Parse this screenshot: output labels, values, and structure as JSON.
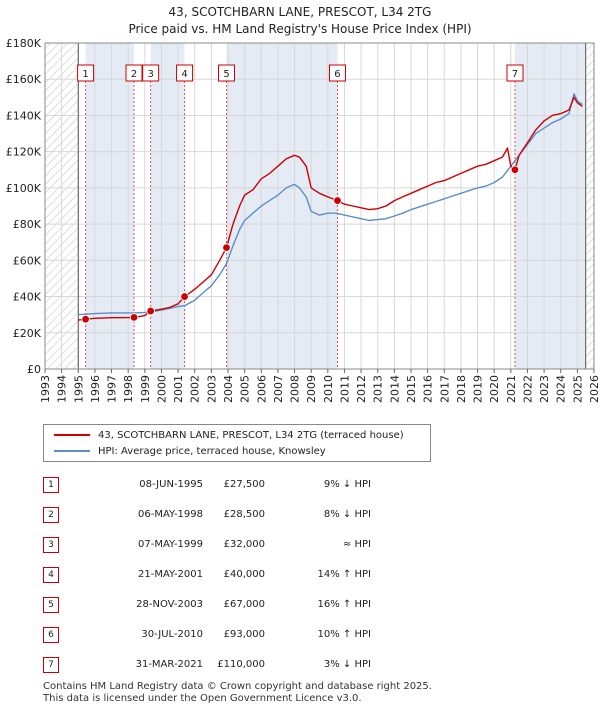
{
  "title_line1": "43, SCOTCHBARN LANE, PRESCOT, L34 2TG",
  "title_line2": "Price paid vs. HM Land Registry's House Price Index (HPI)",
  "chart_data": {
    "type": "line",
    "title": "43, SCOTCHBARN LANE, PRESCOT, L34 2TG — Price paid vs. HM Land Registry's House Price Index (HPI)",
    "x_range": [
      1993,
      2026
    ],
    "ylim": [
      0,
      180000
    ],
    "y_ticks": [
      0,
      20000,
      40000,
      60000,
      80000,
      100000,
      120000,
      140000,
      160000,
      180000
    ],
    "y_tick_labels": [
      "£0",
      "£20K",
      "£40K",
      "£60K",
      "£80K",
      "£100K",
      "£120K",
      "£140K",
      "£160K",
      "£180K"
    ],
    "x_ticks": [
      1993,
      1994,
      1995,
      1996,
      1997,
      1998,
      1999,
      2000,
      2001,
      2002,
      2003,
      2004,
      2005,
      2006,
      2007,
      2008,
      2009,
      2010,
      2011,
      2012,
      2013,
      2014,
      2015,
      2016,
      2017,
      2018,
      2019,
      2020,
      2021,
      2022,
      2023,
      2024,
      2025,
      2026
    ],
    "x_tick_labels": [
      "1993",
      "1994",
      "1995",
      "1996",
      "1997",
      "1998",
      "1999",
      "2000",
      "2001",
      "2002",
      "2003",
      "2004",
      "2005",
      "2006",
      "2007",
      "2008",
      "2009",
      "2010",
      "2011",
      "2012",
      "2013",
      "2014",
      "2015",
      "2016",
      "2017",
      "2018",
      "2019",
      "2020",
      "2021",
      "2022",
      "2023",
      "2024",
      "2025",
      "2026"
    ],
    "data_start": 1995.0,
    "data_end": 2025.5,
    "grid": true,
    "legend_position": "bottom",
    "series": [
      {
        "name": "43, SCOTCHBARN LANE, PRESCOT, L34 2TG (terraced house)",
        "color": "#cc0000",
        "x": [
          1995.0,
          1995.44,
          1996.0,
          1997.0,
          1998.0,
          1998.35,
          1999.0,
          1999.35,
          2000.0,
          2000.5,
          2001.0,
          2001.39,
          2002.0,
          2002.5,
          2003.0,
          2003.5,
          2003.91,
          2004.3,
          2004.7,
          2005.0,
          2005.5,
          2006.0,
          2006.5,
          2007.0,
          2007.5,
          2008.0,
          2008.3,
          2008.7,
          2009.0,
          2009.5,
          2010.0,
          2010.58,
          2011.0,
          2011.5,
          2012.0,
          2012.5,
          2013.0,
          2013.5,
          2014.0,
          2014.5,
          2015.0,
          2015.5,
          2016.0,
          2016.5,
          2017.0,
          2017.5,
          2018.0,
          2018.5,
          2019.0,
          2019.5,
          2020.0,
          2020.5,
          2020.8,
          2021.0,
          2021.25,
          2021.5,
          2022.0,
          2022.5,
          2023.0,
          2023.5,
          2024.0,
          2024.5,
          2024.8,
          2025.0,
          2025.3
        ],
        "y": [
          27000,
          27500,
          28000,
          28300,
          28400,
          28500,
          29500,
          32000,
          33000,
          34000,
          36000,
          40000,
          44000,
          48000,
          52000,
          60000,
          67000,
          80000,
          90000,
          96000,
          99000,
          105000,
          108000,
          112000,
          116000,
          118000,
          117000,
          112000,
          100000,
          97000,
          95000,
          93000,
          91000,
          90000,
          89000,
          88000,
          88500,
          90000,
          93000,
          95000,
          97000,
          99000,
          101000,
          103000,
          104000,
          106000,
          108000,
          110000,
          112000,
          113000,
          115000,
          117000,
          122000,
          112000,
          110000,
          118000,
          125000,
          132000,
          137000,
          140000,
          141000,
          143000,
          150000,
          147000,
          145000
        ]
      },
      {
        "name": "HPI: Average price, terraced house, Knowsley",
        "color": "#5b8fc9",
        "x": [
          1995.0,
          1995.5,
          1996.0,
          1997.0,
          1998.0,
          1998.35,
          1999.0,
          1999.35,
          2000.0,
          2000.5,
          2001.0,
          2001.4,
          2002.0,
          2002.5,
          2003.0,
          2003.5,
          2003.9,
          2004.3,
          2004.7,
          2005.0,
          2005.5,
          2006.0,
          2006.5,
          2007.0,
          2007.5,
          2008.0,
          2008.3,
          2008.7,
          2009.0,
          2009.5,
          2010.0,
          2010.5,
          2011.0,
          2011.5,
          2012.0,
          2012.5,
          2013.0,
          2013.5,
          2014.0,
          2014.5,
          2015.0,
          2015.5,
          2016.0,
          2016.5,
          2017.0,
          2017.5,
          2018.0,
          2018.5,
          2019.0,
          2019.5,
          2020.0,
          2020.5,
          2021.0,
          2021.5,
          2022.0,
          2022.5,
          2023.0,
          2023.5,
          2024.0,
          2024.5,
          2024.8,
          2025.0,
          2025.3
        ],
        "y": [
          30000,
          30300,
          30600,
          31000,
          31000,
          31000,
          31200,
          31500,
          32500,
          33500,
          34500,
          35000,
          38000,
          42000,
          46000,
          52000,
          58000,
          68000,
          77000,
          82000,
          86000,
          90000,
          93000,
          96000,
          100000,
          102000,
          100000,
          95000,
          87000,
          85000,
          86000,
          86000,
          85000,
          84000,
          83000,
          82000,
          82500,
          83000,
          84500,
          86000,
          88000,
          89500,
          91000,
          92500,
          94000,
          95500,
          97000,
          98500,
          100000,
          101000,
          103000,
          106000,
          112000,
          118000,
          124000,
          130000,
          133000,
          136000,
          138000,
          141000,
          152000,
          148000,
          146000
        ]
      }
    ],
    "sales": [
      {
        "label": "1",
        "x": 1995.44,
        "y": 27500
      },
      {
        "label": "2",
        "x": 1998.35,
        "y": 28500
      },
      {
        "label": "3",
        "x": 1999.35,
        "y": 32000
      },
      {
        "label": "4",
        "x": 2001.39,
        "y": 40000
      },
      {
        "label": "5",
        "x": 2003.91,
        "y": 67000
      },
      {
        "label": "6",
        "x": 2010.58,
        "y": 93000
      },
      {
        "label": "7",
        "x": 2021.25,
        "y": 110000
      }
    ]
  },
  "legend": {
    "property": "43, SCOTCHBARN LANE, PRESCOT, L34 2TG (terraced house)",
    "hpi": "HPI: Average price, terraced house, Knowsley"
  },
  "transactions": [
    {
      "num": "1",
      "date": "08-JUN-1995",
      "price": "£27,500",
      "hpi": "9% ↓ HPI"
    },
    {
      "num": "2",
      "date": "06-MAY-1998",
      "price": "£28,500",
      "hpi": "8% ↓ HPI"
    },
    {
      "num": "3",
      "date": "07-MAY-1999",
      "price": "£32,000",
      "hpi": "≈ HPI"
    },
    {
      "num": "4",
      "date": "21-MAY-2001",
      "price": "£40,000",
      "hpi": "14% ↑ HPI"
    },
    {
      "num": "5",
      "date": "28-NOV-2003",
      "price": "£67,000",
      "hpi": "16% ↑ HPI"
    },
    {
      "num": "6",
      "date": "30-JUL-2010",
      "price": "£93,000",
      "hpi": "10% ↑ HPI"
    },
    {
      "num": "7",
      "date": "31-MAR-2021",
      "price": "£110,000",
      "hpi": "3% ↓ HPI"
    }
  ],
  "footer": {
    "line1": "Contains HM Land Registry data © Crown copyright and database right 2025.",
    "line2": "This data is licensed under the Open Government Licence v3.0."
  },
  "colors": {
    "property_line": "#cc0000",
    "hpi_line": "#5b8fc9",
    "shade": "#dde6f3",
    "hatch": "#c8c8c8",
    "grid": "#d8d8d8"
  }
}
